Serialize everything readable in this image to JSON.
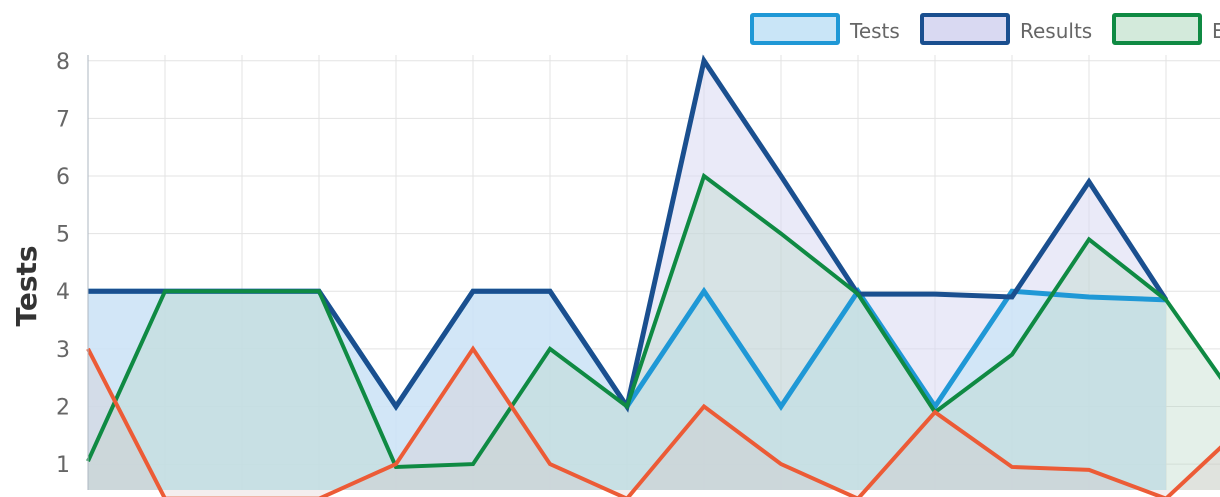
{
  "chart_data": {
    "type": "area",
    "title": "",
    "ylabel": "Tests",
    "xlabel": "",
    "ylim": [
      0.55,
      8.1
    ],
    "yticks": [
      "1",
      "2",
      "3",
      "4",
      "5",
      "6",
      "7",
      "8"
    ],
    "grid": true,
    "legend_position": "top-right",
    "series": [
      {
        "name": "Tests",
        "color": "#1f98d6",
        "fill": "#c9e5f7",
        "fill_opacity": 0.72,
        "values": [
          4,
          4,
          4,
          4,
          2,
          4,
          4,
          2,
          4,
          2,
          4,
          2,
          4,
          3.9,
          3.85
        ]
      },
      {
        "name": "Results",
        "color": "#1a4f8f",
        "fill": "#d9d9f2",
        "fill_opacity": 0.55,
        "values": [
          4,
          4,
          4,
          4,
          2,
          4,
          4,
          2,
          8,
          6,
          3.95,
          3.95,
          3.9,
          5.9,
          3.85
        ]
      },
      {
        "name": "",
        "color": "#0f8a43",
        "fill": "#b8d8c6",
        "fill_opacity": 0.38,
        "values": [
          1.05,
          4,
          4,
          4,
          0.95,
          1,
          3,
          2,
          6,
          5,
          3.95,
          1.9,
          2.9,
          4.9,
          3.85,
          1.95
        ]
      },
      {
        "name": "",
        "color": "#ec5b36",
        "fill": "#d6c1c1",
        "fill_opacity": 0.28,
        "values": [
          3,
          0.4,
          0.4,
          0.4,
          1,
          3,
          1,
          0.4,
          2,
          1,
          0.4,
          1.9,
          0.95,
          0.9,
          0.4,
          1.65
        ]
      }
    ],
    "legend_items": [
      {
        "label": "Tests",
        "color": "#1f98d6",
        "fill": "#c9e5f7"
      },
      {
        "label": "Results",
        "color": "#1a4f8f",
        "fill": "#d9d9f2"
      },
      {
        "label": "E",
        "color": "#0f8a43",
        "fill": "#d3eadb"
      }
    ]
  }
}
